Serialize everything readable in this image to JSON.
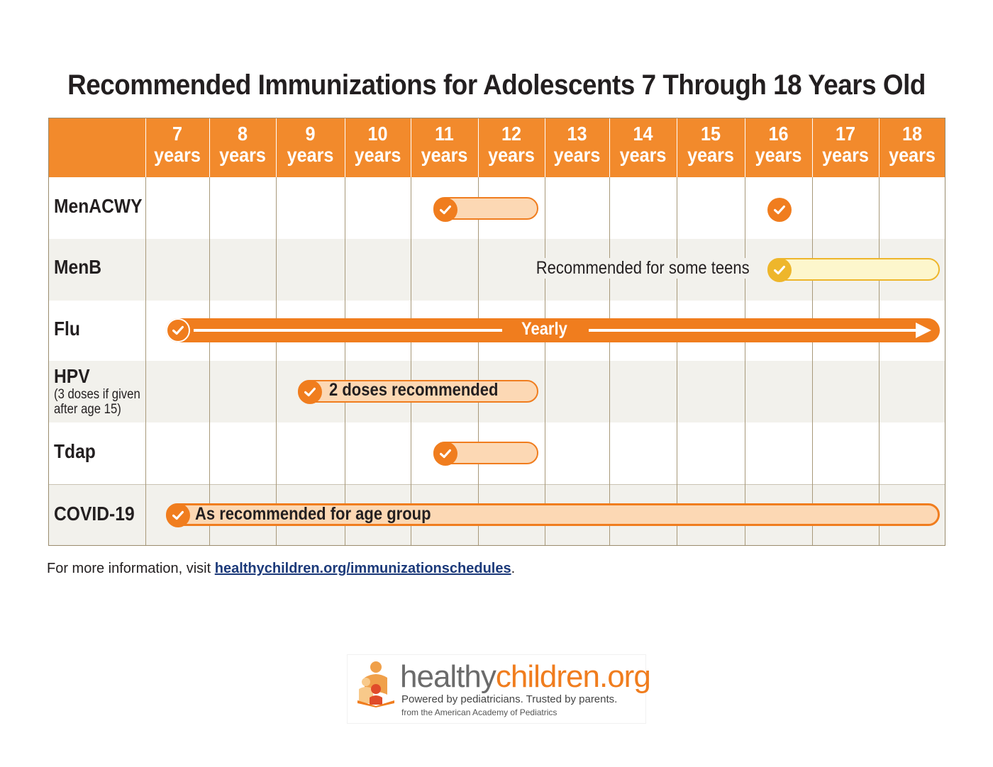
{
  "title": "Recommended Immunizations for Adolescents 7 Through 18 Years Old",
  "columns": [
    {
      "num": "7",
      "unit": "years"
    },
    {
      "num": "8",
      "unit": "years"
    },
    {
      "num": "9",
      "unit": "years"
    },
    {
      "num": "10",
      "unit": "years"
    },
    {
      "num": "11",
      "unit": "years"
    },
    {
      "num": "12",
      "unit": "years"
    },
    {
      "num": "13",
      "unit": "years"
    },
    {
      "num": "14",
      "unit": "years"
    },
    {
      "num": "15",
      "unit": "years"
    },
    {
      "num": "16",
      "unit": "years"
    },
    {
      "num": "17",
      "unit": "years"
    },
    {
      "num": "18",
      "unit": "years"
    }
  ],
  "rows": [
    {
      "label": "MenACWY",
      "sublabel": ""
    },
    {
      "label": "MenB",
      "sublabel": ""
    },
    {
      "label": "Flu",
      "sublabel": ""
    },
    {
      "label": "HPV",
      "sublabel": "(3 doses if given after age 15)"
    },
    {
      "label": "Tdap",
      "sublabel": ""
    },
    {
      "label": "COVID-19",
      "sublabel": ""
    }
  ],
  "bars": {
    "menb_note": "Recommended for some teens",
    "flu_label": "Yearly",
    "hpv_label": "2 doses recommended",
    "covid_label": "As recommended for age group"
  },
  "footer": {
    "prefix": "For more information, visit ",
    "link": "healthychildren.org/immunizationschedules",
    "suffix": "."
  },
  "logo": {
    "brand_part1": "healthy",
    "brand_part2": "children.org",
    "tagline": "Powered by pediatricians. Trusted by parents.",
    "subtag": "from the American Academy of Pediatrics"
  },
  "colors": {
    "orange": "#f07d1e",
    "header": "#f28a2c",
    "light_orange": "#fcd8b4",
    "yellow": "#eeb62b",
    "light_yellow": "#fdf6cc",
    "link": "#1c3a7a"
  }
}
